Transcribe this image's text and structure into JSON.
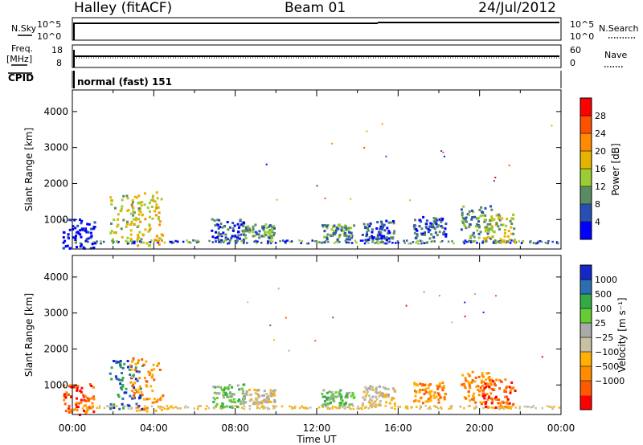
{
  "header": {
    "station": "Halley (fitACF)",
    "beam": "Beam 01",
    "date": "24/Jul/2012"
  },
  "strip_labels": {
    "nsky": "N.Sky",
    "nsearch": "N.Search",
    "nsky_ticks": [
      "10^5",
      "10^0"
    ],
    "nsearch_ticks": [
      "10^5",
      "10^0"
    ],
    "freq_line1": "Freq.",
    "freq_line2": "[MHz]",
    "freq_ticks": [
      "18",
      "8"
    ],
    "nave": "Nave",
    "nave_ticks": [
      "60",
      "0"
    ],
    "cpid": "CPID",
    "mode_text": "normal (fast) 151"
  },
  "colors": {
    "power": [
      "#0000ff",
      "#2850b4",
      "#5a8c64",
      "#9acd32",
      "#e6b400",
      "#ff8c00",
      "#ff5000",
      "#ff0000"
    ],
    "velocity": [
      "#ff0000",
      "#ff5a00",
      "#ff8c00",
      "#ffb000",
      "#c8c0a0",
      "#aaaaaa",
      "#66cc33",
      "#33aa44",
      "#2a6fb0",
      "#1428c8"
    ]
  },
  "chart_data": [
    {
      "type": "heatmap",
      "name": "power",
      "ylabel": "Slant Range [km]",
      "yticks": [
        1000,
        2000,
        3000,
        4000
      ],
      "ylim": [
        180,
        4600
      ],
      "xlim": [
        0,
        24
      ],
      "colorbar_label": "Power [dB]",
      "colorbar_ticks": [
        4,
        8,
        12,
        16,
        20,
        24,
        28
      ],
      "colorbar_range": [
        0,
        32
      ],
      "patches": [
        {
          "x": 0.3,
          "r0": 200,
          "r1": 1050,
          "level": 0
        },
        {
          "x": 2.6,
          "r0": 350,
          "r1": 1700,
          "level": 3
        },
        {
          "x": 3.6,
          "r0": 300,
          "r1": 1800,
          "level": 4
        },
        {
          "x": 7.6,
          "r0": 400,
          "r1": 1050,
          "level": 1
        },
        {
          "x": 9.1,
          "r0": 500,
          "r1": 900,
          "level": 2
        },
        {
          "x": 13.0,
          "r0": 450,
          "r1": 900,
          "level": 2
        },
        {
          "x": 15.0,
          "r0": 450,
          "r1": 1000,
          "level": 1
        },
        {
          "x": 17.5,
          "r0": 500,
          "r1": 1100,
          "level": 1
        },
        {
          "x": 19.8,
          "r0": 500,
          "r1": 1400,
          "level": 2
        },
        {
          "x": 20.9,
          "r0": 400,
          "r1": 1200,
          "level": 3
        }
      ]
    },
    {
      "type": "heatmap",
      "name": "velocity",
      "xlabel": "Time UT",
      "ylabel": "Slant Range [km]",
      "xticks": [
        "00:00",
        "04:00",
        "08:00",
        "12:00",
        "16:00",
        "20:00",
        "00:00"
      ],
      "yticks": [
        1000,
        2000,
        3000,
        4000
      ],
      "ylim": [
        180,
        4600
      ],
      "xlim": [
        0,
        24
      ],
      "colorbar_label": "Velocity [m s⁻¹]",
      "colorbar_ticks": [
        "1000",
        "500",
        "100",
        "25",
        "−25",
        "−100",
        "−500",
        "−1000"
      ],
      "patches": [
        {
          "x": 0.3,
          "r0": 200,
          "r1": 1050,
          "level": 1
        },
        {
          "x": 2.6,
          "r0": 350,
          "r1": 1700,
          "level": 8
        },
        {
          "x": 3.6,
          "r0": 300,
          "r1": 1800,
          "level": 2
        },
        {
          "x": 7.6,
          "r0": 400,
          "r1": 1050,
          "level": 6
        },
        {
          "x": 9.1,
          "r0": 500,
          "r1": 900,
          "level": 4
        },
        {
          "x": 13.0,
          "r0": 450,
          "r1": 900,
          "level": 6
        },
        {
          "x": 15.0,
          "r0": 450,
          "r1": 1000,
          "level": 4
        },
        {
          "x": 17.5,
          "r0": 500,
          "r1": 1100,
          "level": 2
        },
        {
          "x": 19.8,
          "r0": 500,
          "r1": 1400,
          "level": 2
        },
        {
          "x": 20.9,
          "r0": 400,
          "r1": 1200,
          "level": 1
        }
      ]
    }
  ]
}
